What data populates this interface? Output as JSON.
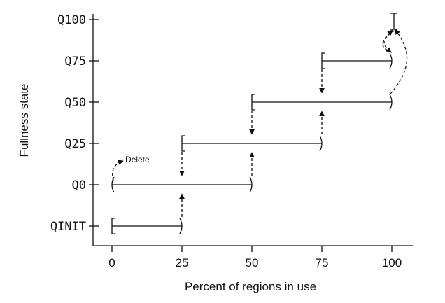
{
  "chart_data": {
    "type": "diagram",
    "xlabel": "Percent of regions in use",
    "ylabel": "Fullness state",
    "x_ticks": [
      "0",
      "25",
      "50",
      "75",
      "100"
    ],
    "y_ticks": [
      "QINIT",
      "Q0",
      "Q25",
      "Q50",
      "Q75",
      "Q100"
    ],
    "annotation": "Delete",
    "ranges": [
      {
        "state": "QINIT",
        "x_start": 0,
        "x_end": 25,
        "start_bracket": "[",
        "end_bracket": ")"
      },
      {
        "state": "Q0",
        "x_start": 0,
        "x_end": 50,
        "start_bracket": "(",
        "end_bracket": ")"
      },
      {
        "state": "Q25",
        "x_start": 25,
        "x_end": 75,
        "start_bracket": "[",
        "end_bracket": ")"
      },
      {
        "state": "Q50",
        "x_start": 50,
        "x_end": 100,
        "start_bracket": "[",
        "end_bracket": ")"
      },
      {
        "state": "Q75",
        "x_start": 75,
        "x_end": 100,
        "start_bracket": "[",
        "end_bracket": ")"
      },
      {
        "state": "Q100",
        "x_start": 100,
        "x_end": 100,
        "start_bracket": "[",
        "end_bracket": "]"
      }
    ],
    "transitions_up": [
      {
        "from": "QINIT",
        "to": "Q0",
        "x": 25
      },
      {
        "from": "Q0",
        "to": "Q25",
        "x": 50
      },
      {
        "from": "Q25",
        "to": "Q50",
        "x": 75
      },
      {
        "from": "Q50",
        "to": "Q100",
        "x": 100
      },
      {
        "from": "Q75",
        "to": "Q100",
        "x": 100
      }
    ],
    "transitions_down": [
      {
        "from": "Q25",
        "to": "Q0",
        "x": 25
      },
      {
        "from": "Q50",
        "to": "Q25",
        "x": 50
      },
      {
        "from": "Q75",
        "to": "Q50",
        "x": 75
      },
      {
        "from": "Q100",
        "to": "Q75",
        "x": 100
      }
    ]
  }
}
